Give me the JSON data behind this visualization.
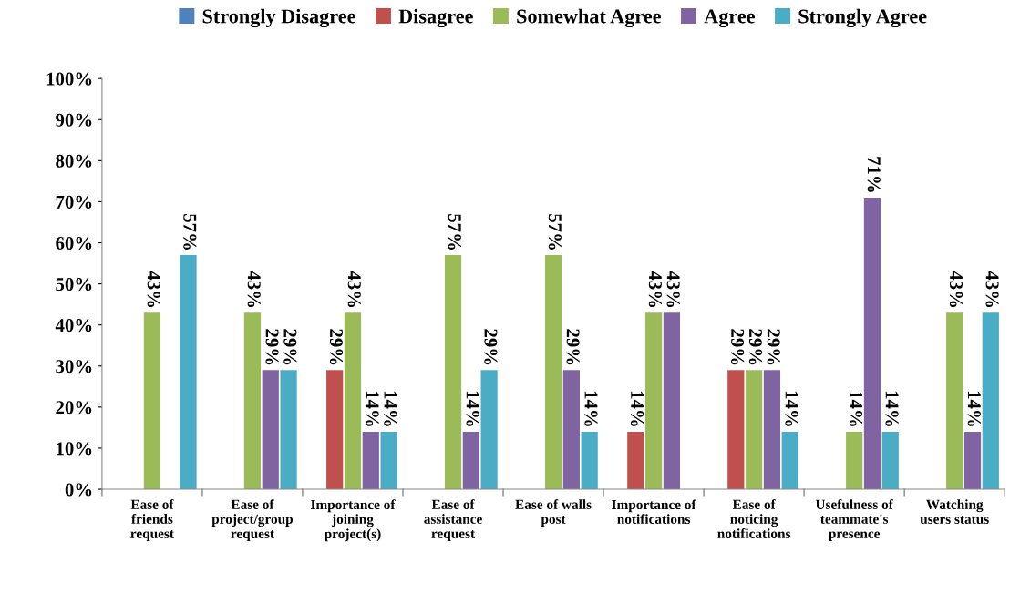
{
  "chart_data": {
    "type": "bar",
    "categories": [
      "Ease of\nfriends\nrequest",
      "Ease of\nproject/group\nrequest",
      "Importance of\njoining\nproject(s)",
      "Ease of\nassistance\nrequest",
      "Ease of walls\npost",
      "Importance of\nnotifications",
      "Ease of\nnoticing\nnotifications",
      "Usefulness of\nteammate's\npresence",
      "Watching\nusers status"
    ],
    "series": [
      {
        "name": "Strongly Disagree",
        "color": "#4f81bd",
        "values": [
          null,
          null,
          null,
          null,
          null,
          null,
          null,
          null,
          null
        ],
        "value_labels": [
          null,
          null,
          null,
          null,
          null,
          null,
          null,
          null,
          null
        ]
      },
      {
        "name": "Disagree",
        "color": "#c0504d",
        "values": [
          null,
          null,
          29,
          null,
          null,
          14,
          29,
          null,
          null
        ],
        "value_labels": [
          null,
          null,
          "29%",
          null,
          null,
          "14%",
          "29%",
          null,
          null
        ]
      },
      {
        "name": "Somewhat Agree",
        "color": "#9bbb59",
        "values": [
          43,
          43,
          43,
          57,
          57,
          43,
          29,
          14,
          43
        ],
        "value_labels": [
          "43%",
          "43%",
          "43%",
          "57%",
          "57%",
          "43%",
          "29%",
          "14%",
          "43%"
        ]
      },
      {
        "name": "Agree",
        "color": "#8064a2",
        "values": [
          null,
          29,
          14,
          14,
          29,
          43,
          29,
          71,
          14
        ],
        "value_labels": [
          null,
          "29%",
          "14%",
          "14%",
          "29%",
          "43%",
          "29%",
          "71%",
          "14%"
        ]
      },
      {
        "name": "Strongly Agree",
        "color": "#4bacc6",
        "values": [
          57,
          29,
          14,
          29,
          14,
          null,
          14,
          14,
          43
        ],
        "value_labels": [
          "57%",
          "29%",
          "14%",
          "29%",
          "14%",
          null,
          "14%",
          "14%",
          "43%"
        ]
      }
    ],
    "ylim": [
      0,
      100
    ],
    "yticks": [
      {
        "value": 0,
        "label": "0%"
      },
      {
        "value": 10,
        "label": "10%"
      },
      {
        "value": 20,
        "label": "20%"
      },
      {
        "value": 30,
        "label": "30%"
      },
      {
        "value": 40,
        "label": "40%"
      },
      {
        "value": 50,
        "label": "50%"
      },
      {
        "value": 60,
        "label": "60%"
      },
      {
        "value": 70,
        "label": "70%"
      },
      {
        "value": 80,
        "label": "80%"
      },
      {
        "value": 90,
        "label": "90%"
      },
      {
        "value": 100,
        "label": "100%"
      }
    ],
    "grid": false,
    "legend": "top"
  }
}
